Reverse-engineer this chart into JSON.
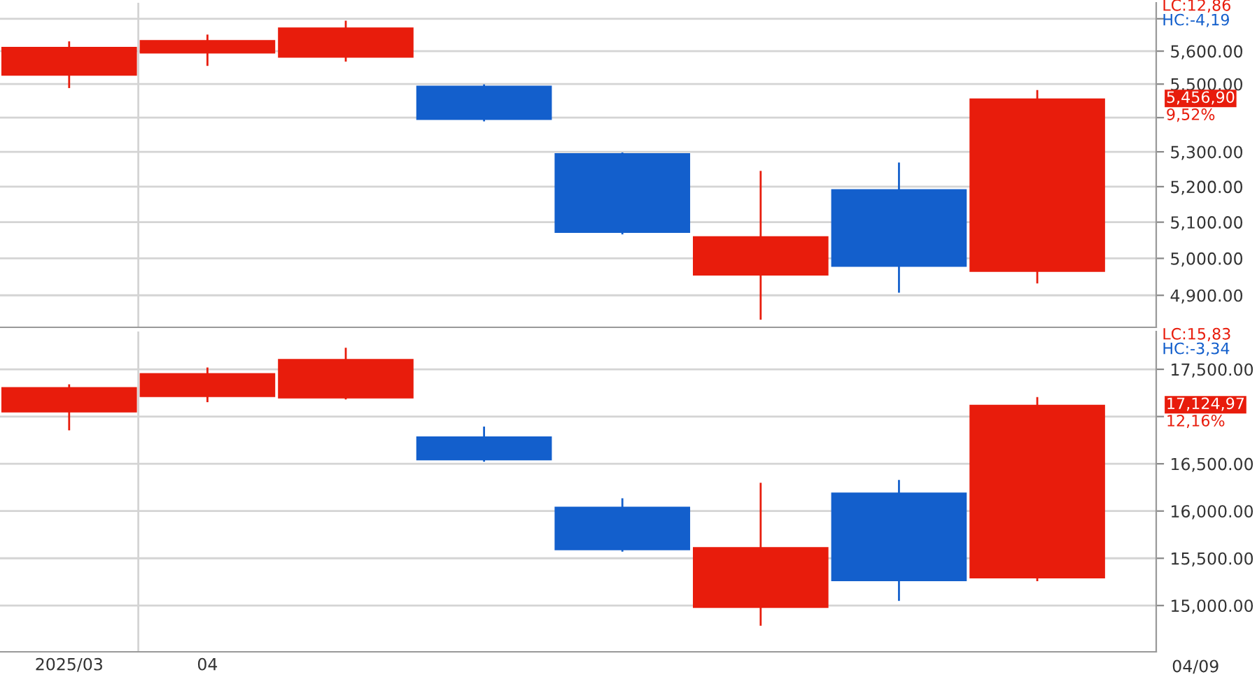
{
  "chart_data": [
    {
      "type": "candlestick",
      "categories": [
        "2025/03",
        "04",
        null,
        null,
        null,
        null,
        null,
        null
      ],
      "ohlc": [
        [
          5525,
          5630,
          5488,
          5613
        ],
        [
          5593,
          5651,
          5555,
          5634
        ],
        [
          5580,
          5694,
          5568,
          5673
        ],
        [
          5495,
          5499,
          5389,
          5393
        ],
        [
          5296,
          5298,
          5066,
          5070
        ],
        [
          4953,
          5245,
          4835,
          5061
        ],
        [
          5193,
          5269,
          4907,
          4977
        ],
        [
          4963,
          5482,
          4932,
          5456.9
        ]
      ],
      "colors": [
        "#e81c0c",
        "#e81c0c",
        "#e81c0c",
        "#135fcc",
        "#135fcc",
        "#e81c0c",
        "#135fcc",
        "#e81c0c"
      ],
      "log": true,
      "ylim": [
        4815,
        5750
      ],
      "yticks": [
        {
          "value": 4900,
          "label": "4,900.00"
        },
        {
          "value": 5000,
          "label": "5,000.00"
        },
        {
          "value": 5100,
          "label": "5,100.00"
        },
        {
          "value": 5200,
          "label": "5,200.00"
        },
        {
          "value": 5300,
          "label": "5,300.00"
        },
        {
          "value": 5400,
          "label": null
        },
        {
          "value": 5500,
          "label": "5,500.00"
        },
        {
          "value": 5600,
          "label": "5,600.00"
        },
        {
          "value": 5700,
          "label": null
        }
      ],
      "grid": true,
      "tick_labels": "y",
      "annotations": [
        "LC:12,86",
        "HC:-4,19",
        "5,456,90",
        "9,52%"
      ]
    },
    {
      "type": "candlestick",
      "categories": [
        "2025/03",
        "04",
        null,
        null,
        null,
        null,
        null,
        null
      ],
      "ohlc": [
        [
          17043,
          17341,
          16854,
          17311
        ],
        [
          17207,
          17519,
          17152,
          17460
        ],
        [
          17192,
          17728,
          17181,
          17609
        ],
        [
          16790,
          16894,
          16522,
          16537
        ],
        [
          16046,
          16135,
          15570,
          15585
        ],
        [
          14975,
          16299,
          14786,
          15619
        ],
        [
          16195,
          16329,
          15049,
          15257
        ],
        [
          15287,
          17207,
          15257,
          17124.97
        ]
      ],
      "colors": [
        "#e81c0c",
        "#e81c0c",
        "#e81c0c",
        "#135fcc",
        "#135fcc",
        "#e81c0c",
        "#135fcc",
        "#e81c0c"
      ],
      "ylim": [
        14510,
        17900
      ],
      "yticks": [
        {
          "value": 15000,
          "label": "15,000.00"
        },
        {
          "value": 15500,
          "label": "15,500.00"
        },
        {
          "value": 16000,
          "label": "16,000.00"
        },
        {
          "value": 16500,
          "label": "16,500.00"
        },
        {
          "value": 17000,
          "label": null
        },
        {
          "value": 17500,
          "label": "17,500.00"
        }
      ],
      "grid": true,
      "annotations": [
        "LC:15,83",
        "HC:-3,34",
        "17,124,97",
        "12,16%",
        "04/09"
      ]
    }
  ]
}
